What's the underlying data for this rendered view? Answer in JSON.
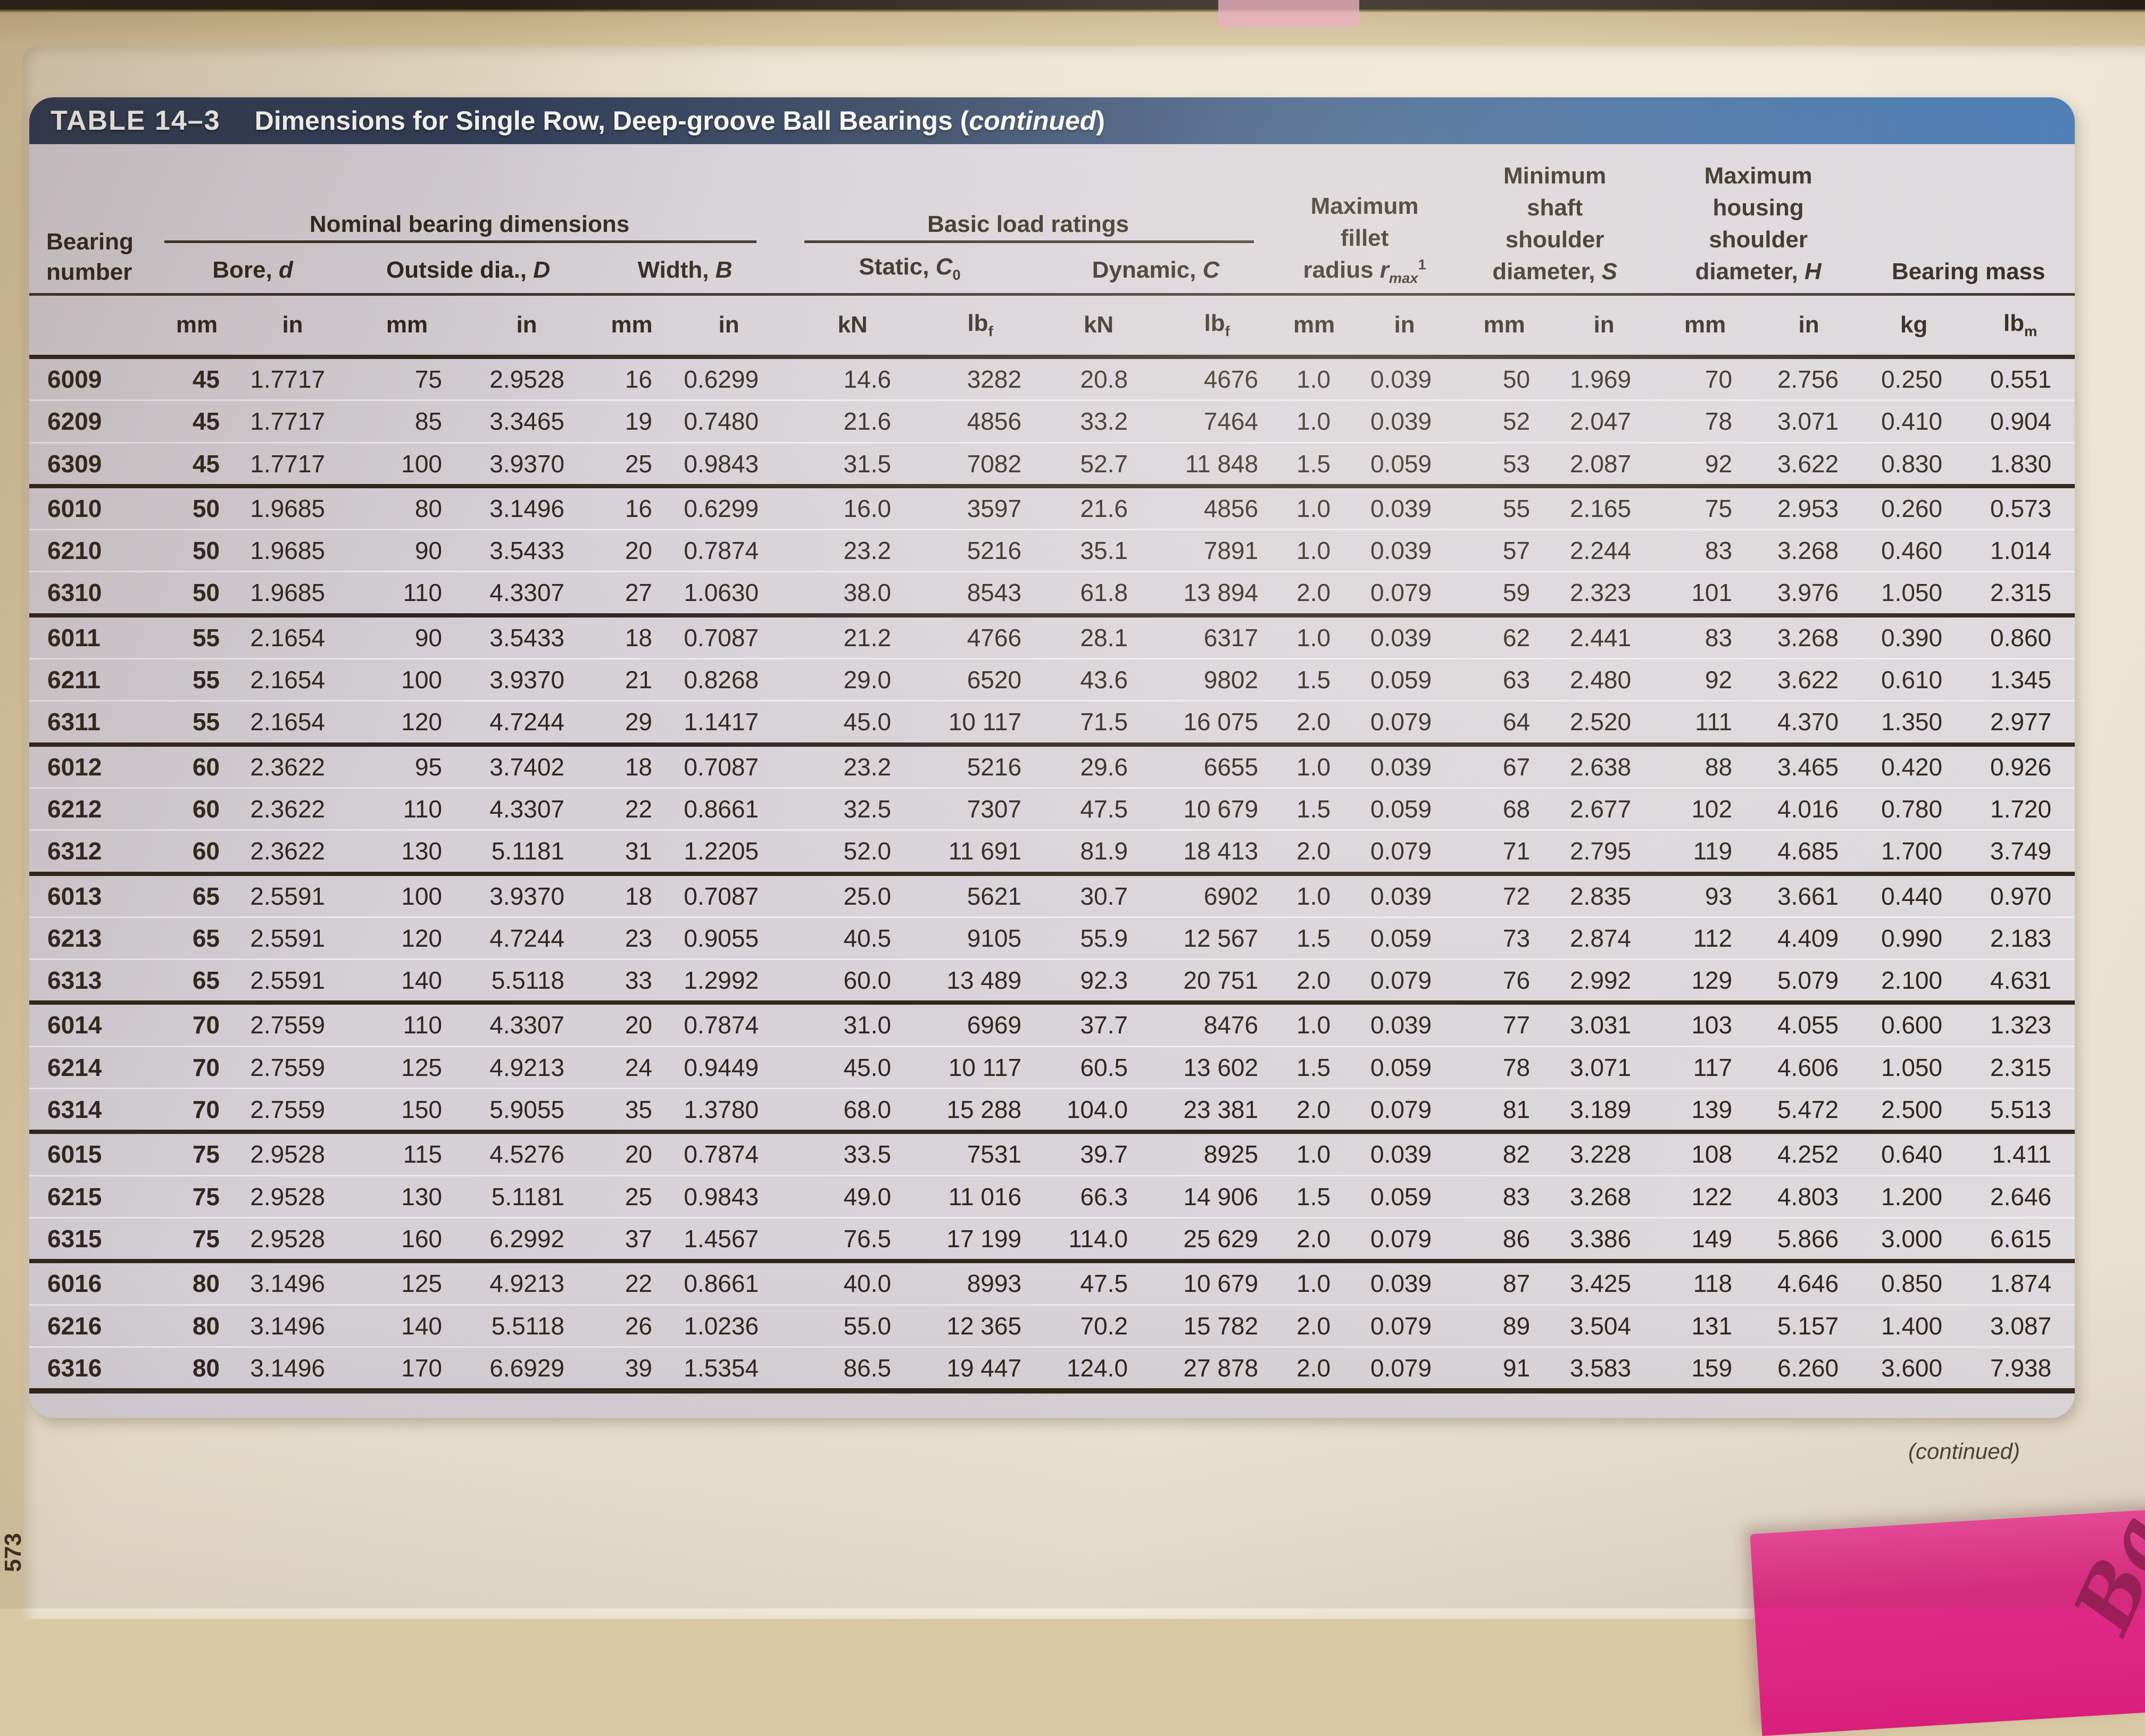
{
  "photo": {
    "page_number": "573",
    "continued_note": "(continued)",
    "sticky_note_text": "Ba"
  },
  "table": {
    "title_tag": "TABLE 14–3",
    "title_main": "Dimensions for Single Row, Deep-groove Ball Bearings (",
    "title_italic": "continued",
    "title_close": ")",
    "header": {
      "bearing_l1": "Bearing",
      "bearing_l2": "number",
      "group_nominal": "Nominal bearing dimensions",
      "group_load": "Basic load ratings",
      "bore_label": "Bore, ",
      "bore_sym": "d",
      "od_label": "Outside dia., ",
      "od_sym": "D",
      "width_label": "Width, ",
      "width_sym": "B",
      "static_label": "Static, ",
      "static_sym": "C",
      "static_sub": "0",
      "dynamic_label": "Dynamic, ",
      "dynamic_sym": "C",
      "fillet_l1": "Maximum",
      "fillet_l2": "fillet",
      "fillet_l3": "radius ",
      "fillet_sym": "r",
      "fillet_sub": "max",
      "fillet_sup": "1",
      "shaft_l1": "Minimum",
      "shaft_l2": "shaft",
      "shaft_l3": "shoulder",
      "shaft_l4": "diameter, ",
      "shaft_sym": "S",
      "housing_l1": "Maximum",
      "housing_l2": "housing",
      "housing_l3": "shoulder",
      "housing_l4": "diameter, ",
      "housing_sym": "H",
      "mass": "Bearing mass",
      "units": [
        "mm",
        "in",
        "mm",
        "in",
        "mm",
        "in",
        "kN",
        "lb_f",
        "kN",
        "lb_f",
        "mm",
        "in",
        "mm",
        "in",
        "mm",
        "in",
        "kg",
        "lb_m"
      ]
    },
    "rows": [
      [
        "6009",
        "45",
        "1.7717",
        "75",
        "2.9528",
        "16",
        "0.6299",
        "14.6",
        "3282",
        "20.8",
        "4676",
        "1.0",
        "0.039",
        "50",
        "1.969",
        "70",
        "2.756",
        "0.250",
        "0.551"
      ],
      [
        "6209",
        "45",
        "1.7717",
        "85",
        "3.3465",
        "19",
        "0.7480",
        "21.6",
        "4856",
        "33.2",
        "7464",
        "1.0",
        "0.039",
        "52",
        "2.047",
        "78",
        "3.071",
        "0.410",
        "0.904"
      ],
      [
        "6309",
        "45",
        "1.7717",
        "100",
        "3.9370",
        "25",
        "0.9843",
        "31.5",
        "7082",
        "52.7",
        "11 848",
        "1.5",
        "0.059",
        "53",
        "2.087",
        "92",
        "3.622",
        "0.830",
        "1.830"
      ],
      [
        "6010",
        "50",
        "1.9685",
        "80",
        "3.1496",
        "16",
        "0.6299",
        "16.0",
        "3597",
        "21.6",
        "4856",
        "1.0",
        "0.039",
        "55",
        "2.165",
        "75",
        "2.953",
        "0.260",
        "0.573"
      ],
      [
        "6210",
        "50",
        "1.9685",
        "90",
        "3.5433",
        "20",
        "0.7874",
        "23.2",
        "5216",
        "35.1",
        "7891",
        "1.0",
        "0.039",
        "57",
        "2.244",
        "83",
        "3.268",
        "0.460",
        "1.014"
      ],
      [
        "6310",
        "50",
        "1.9685",
        "110",
        "4.3307",
        "27",
        "1.0630",
        "38.0",
        "8543",
        "61.8",
        "13 894",
        "2.0",
        "0.079",
        "59",
        "2.323",
        "101",
        "3.976",
        "1.050",
        "2.315"
      ],
      [
        "6011",
        "55",
        "2.1654",
        "90",
        "3.5433",
        "18",
        "0.7087",
        "21.2",
        "4766",
        "28.1",
        "6317",
        "1.0",
        "0.039",
        "62",
        "2.441",
        "83",
        "3.268",
        "0.390",
        "0.860"
      ],
      [
        "6211",
        "55",
        "2.1654",
        "100",
        "3.9370",
        "21",
        "0.8268",
        "29.0",
        "6520",
        "43.6",
        "9802",
        "1.5",
        "0.059",
        "63",
        "2.480",
        "92",
        "3.622",
        "0.610",
        "1.345"
      ],
      [
        "6311",
        "55",
        "2.1654",
        "120",
        "4.7244",
        "29",
        "1.1417",
        "45.0",
        "10 117",
        "71.5",
        "16 075",
        "2.0",
        "0.079",
        "64",
        "2.520",
        "111",
        "4.370",
        "1.350",
        "2.977"
      ],
      [
        "6012",
        "60",
        "2.3622",
        "95",
        "3.7402",
        "18",
        "0.7087",
        "23.2",
        "5216",
        "29.6",
        "6655",
        "1.0",
        "0.039",
        "67",
        "2.638",
        "88",
        "3.465",
        "0.420",
        "0.926"
      ],
      [
        "6212",
        "60",
        "2.3622",
        "110",
        "4.3307",
        "22",
        "0.8661",
        "32.5",
        "7307",
        "47.5",
        "10 679",
        "1.5",
        "0.059",
        "68",
        "2.677",
        "102",
        "4.016",
        "0.780",
        "1.720"
      ],
      [
        "6312",
        "60",
        "2.3622",
        "130",
        "5.1181",
        "31",
        "1.2205",
        "52.0",
        "11 691",
        "81.9",
        "18 413",
        "2.0",
        "0.079",
        "71",
        "2.795",
        "119",
        "4.685",
        "1.700",
        "3.749"
      ],
      [
        "6013",
        "65",
        "2.5591",
        "100",
        "3.9370",
        "18",
        "0.7087",
        "25.0",
        "5621",
        "30.7",
        "6902",
        "1.0",
        "0.039",
        "72",
        "2.835",
        "93",
        "3.661",
        "0.440",
        "0.970"
      ],
      [
        "6213",
        "65",
        "2.5591",
        "120",
        "4.7244",
        "23",
        "0.9055",
        "40.5",
        "9105",
        "55.9",
        "12 567",
        "1.5",
        "0.059",
        "73",
        "2.874",
        "112",
        "4.409",
        "0.990",
        "2.183"
      ],
      [
        "6313",
        "65",
        "2.5591",
        "140",
        "5.5118",
        "33",
        "1.2992",
        "60.0",
        "13 489",
        "92.3",
        "20 751",
        "2.0",
        "0.079",
        "76",
        "2.992",
        "129",
        "5.079",
        "2.100",
        "4.631"
      ],
      [
        "6014",
        "70",
        "2.7559",
        "110",
        "4.3307",
        "20",
        "0.7874",
        "31.0",
        "6969",
        "37.7",
        "8476",
        "1.0",
        "0.039",
        "77",
        "3.031",
        "103",
        "4.055",
        "0.600",
        "1.323"
      ],
      [
        "6214",
        "70",
        "2.7559",
        "125",
        "4.9213",
        "24",
        "0.9449",
        "45.0",
        "10 117",
        "60.5",
        "13 602",
        "1.5",
        "0.059",
        "78",
        "3.071",
        "117",
        "4.606",
        "1.050",
        "2.315"
      ],
      [
        "6314",
        "70",
        "2.7559",
        "150",
        "5.9055",
        "35",
        "1.3780",
        "68.0",
        "15 288",
        "104.0",
        "23 381",
        "2.0",
        "0.079",
        "81",
        "3.189",
        "139",
        "5.472",
        "2.500",
        "5.513"
      ],
      [
        "6015",
        "75",
        "2.9528",
        "115",
        "4.5276",
        "20",
        "0.7874",
        "33.5",
        "7531",
        "39.7",
        "8925",
        "1.0",
        "0.039",
        "82",
        "3.228",
        "108",
        "4.252",
        "0.640",
        "1.411"
      ],
      [
        "6215",
        "75",
        "2.9528",
        "130",
        "5.1181",
        "25",
        "0.9843",
        "49.0",
        "11 016",
        "66.3",
        "14 906",
        "1.5",
        "0.059",
        "83",
        "3.268",
        "122",
        "4.803",
        "1.200",
        "2.646"
      ],
      [
        "6315",
        "75",
        "2.9528",
        "160",
        "6.2992",
        "37",
        "1.4567",
        "76.5",
        "17 199",
        "114.0",
        "25 629",
        "2.0",
        "0.079",
        "86",
        "3.386",
        "149",
        "5.866",
        "3.000",
        "6.615"
      ],
      [
        "6016",
        "80",
        "3.1496",
        "125",
        "4.9213",
        "22",
        "0.8661",
        "40.0",
        "8993",
        "47.5",
        "10 679",
        "1.0",
        "0.039",
        "87",
        "3.425",
        "118",
        "4.646",
        "0.850",
        "1.874"
      ],
      [
        "6216",
        "80",
        "3.1496",
        "140",
        "5.5118",
        "26",
        "1.0236",
        "55.0",
        "12 365",
        "70.2",
        "15 782",
        "2.0",
        "0.079",
        "89",
        "3.504",
        "131",
        "5.157",
        "1.400",
        "3.087"
      ],
      [
        "6316",
        "80",
        "3.1496",
        "170",
        "6.6929",
        "39",
        "1.5354",
        "86.5",
        "19 447",
        "124.0",
        "27 878",
        "2.0",
        "0.079",
        "91",
        "3.583",
        "159",
        "6.260",
        "3.600",
        "7.938"
      ]
    ],
    "colors": {
      "title_bar_left": "#2c3850",
      "title_bar_right": "#4a7cb3",
      "table_background": "#d7d3d8",
      "paper": "#ece3d0",
      "sticky_note": "#e22b88",
      "text": "#30261e"
    }
  }
}
